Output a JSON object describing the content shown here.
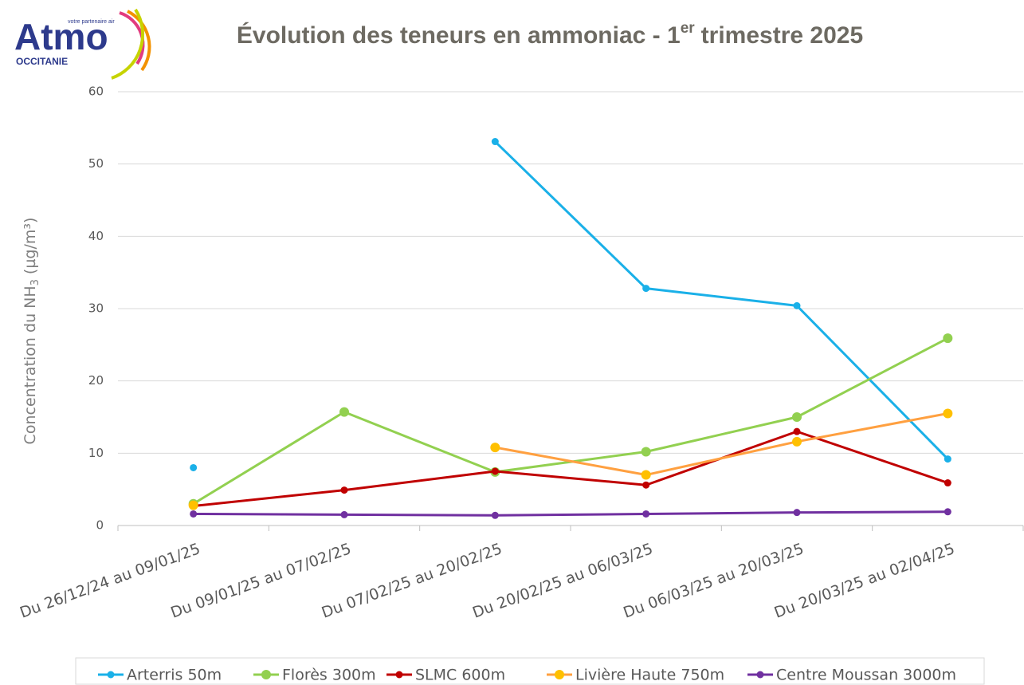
{
  "logo": {
    "name": "Atmo",
    "region": "OCCITANIE",
    "tagline": "votre partenaire air"
  },
  "chart_data": {
    "type": "line",
    "title": {
      "text": "Évolution des teneurs en ammoniac - 1",
      "sup": "er",
      "rest": "trimestre 2025"
    },
    "ylabel": {
      "text": "Concentration du NH",
      "sub": "3",
      "rest": "(µg/m³)"
    },
    "categories": [
      "Du 26/12/24 au 09/01/25",
      "Du 09/01/25 au 07/02/25",
      "Du 07/02/25 au 20/02/25",
      "Du 20/02/25 au 06/03/25",
      "Du 06/03/25 au 20/03/25",
      "Du 20/03/25 au 02/04/25"
    ],
    "series": [
      {
        "name": "Arterris 50m",
        "color": "#1ab0e8",
        "values": [
          8.0,
          null,
          53.1,
          32.8,
          30.4,
          9.2
        ]
      },
      {
        "name": "Florès 300m",
        "color": "#92d050",
        "values": [
          3.0,
          15.7,
          7.4,
          10.2,
          15.0,
          25.9
        ]
      },
      {
        "name": "SLMC 600m",
        "color": "#c00000",
        "values": [
          2.7,
          4.9,
          7.5,
          5.6,
          13.0,
          5.9
        ]
      },
      {
        "name": "Livière Haute 750m",
        "color": "#ffa040",
        "marker_color": "#ffc000",
        "values": [
          2.8,
          null,
          10.8,
          7.0,
          11.6,
          15.5
        ]
      },
      {
        "name": "Centre Moussan 3000m",
        "color": "#7030a0",
        "values": [
          1.6,
          1.5,
          1.4,
          1.6,
          1.8,
          1.9
        ]
      }
    ],
    "ylim": [
      0,
      60
    ],
    "yticks": [
      0,
      10,
      20,
      30,
      40,
      50,
      60
    ],
    "grid": true,
    "legend": "bottom"
  }
}
